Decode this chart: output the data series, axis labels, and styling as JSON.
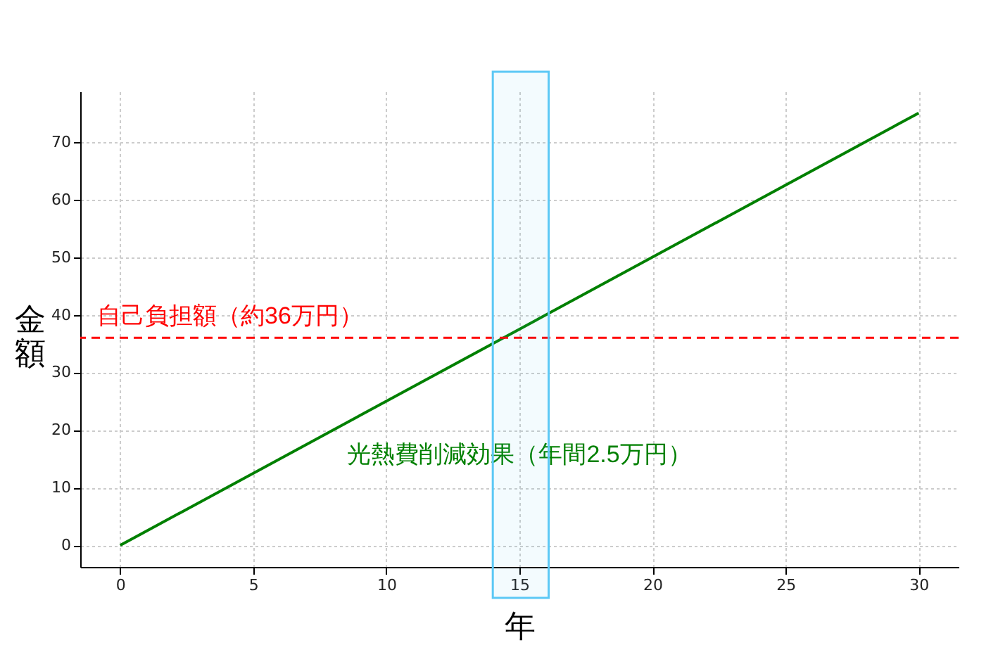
{
  "chart_data": {
    "type": "line",
    "xlabel": "年",
    "ylabel": "金額",
    "x": [
      0,
      30
    ],
    "series": [
      {
        "name": "光熱費削減効果（年間2.5万円）",
        "color": "#008000",
        "values": [
          0,
          75
        ]
      }
    ],
    "xlim": [
      -1.5,
      31.5
    ],
    "ylim": [
      -3.75,
      78.75
    ],
    "xticks": [
      0,
      5,
      10,
      15,
      20,
      25,
      30
    ],
    "yticks": [
      0,
      10,
      20,
      30,
      40,
      50,
      60,
      70
    ],
    "grid": true,
    "marker": "none",
    "line_style": "solid",
    "ref_lines": [
      {
        "axis": "y",
        "value": 36,
        "label": "自己負担額（約36万円）",
        "color": "#ff0000",
        "line_style": "dashed"
      }
    ],
    "bands": [
      {
        "axis": "x",
        "from": 14,
        "to": 16.1,
        "color": "#5bc8f5"
      }
    ]
  }
}
